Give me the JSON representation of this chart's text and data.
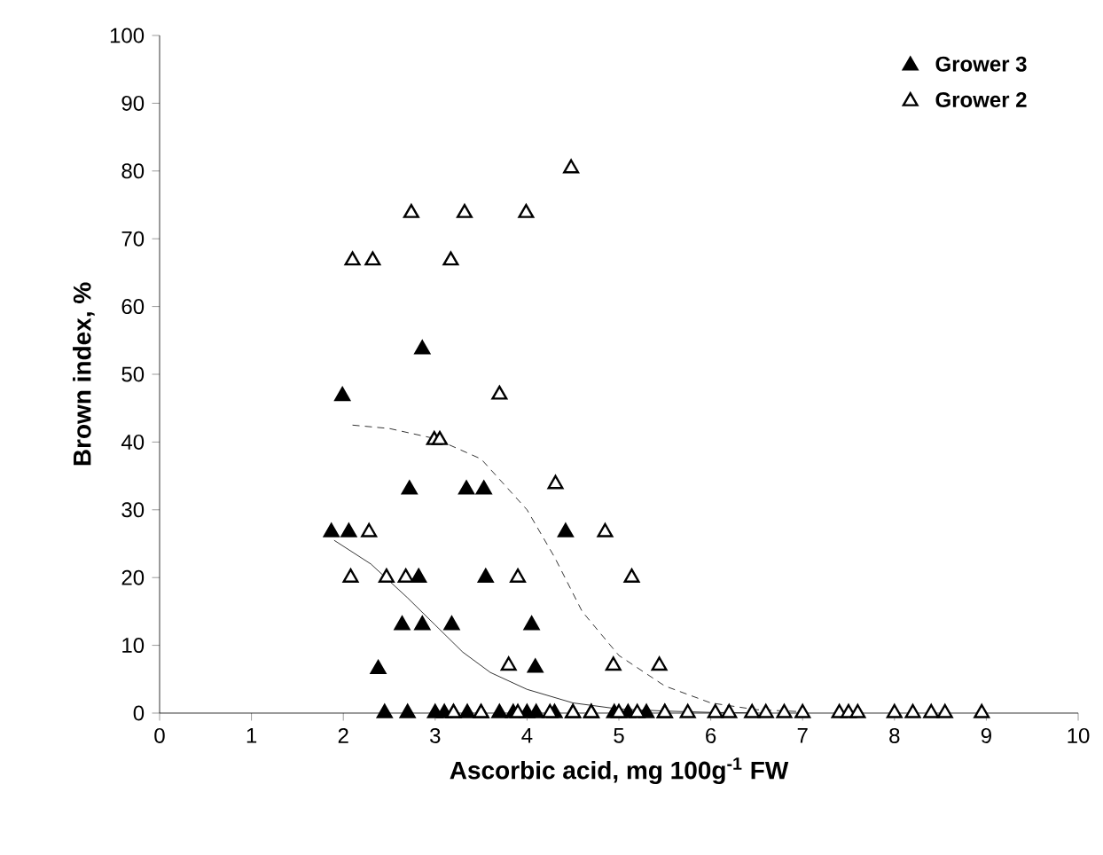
{
  "chart_data": {
    "type": "scatter",
    "xlabel": "Ascorbic acid, mg 100g$^{-1}$ FW",
    "ylabel": "Brown index, %",
    "xlim": [
      0,
      10
    ],
    "ylim": [
      0,
      100
    ],
    "xticks": [
      0,
      1,
      2,
      3,
      4,
      5,
      6,
      7,
      8,
      9,
      10
    ],
    "yticks": [
      0,
      10,
      20,
      30,
      40,
      50,
      60,
      70,
      80,
      90,
      100
    ],
    "grid": false,
    "legend": "top right",
    "marker": "triangle",
    "series": [
      {
        "name": "Grower 3",
        "color": "#000000",
        "x": [
          1.87,
          2.06,
          1.99,
          2.86,
          2.72,
          3.34,
          3.53,
          2.82,
          3.55,
          2.64,
          2.86,
          3.18,
          4.05,
          2.38,
          4.09,
          4.42,
          2.45,
          2.7,
          3.0,
          3.1,
          3.2,
          3.35,
          3.5,
          3.7,
          3.85,
          4.0,
          4.1,
          4.3,
          4.5,
          4.7,
          4.95,
          5.1,
          5.3,
          5.5
        ],
        "values": [
          26.7,
          26.7,
          46.8,
          53.7,
          33,
          33,
          33,
          20,
          20,
          13,
          13,
          13,
          13,
          6.5,
          6.7,
          26.7,
          0,
          0,
          0,
          0,
          0,
          0,
          0,
          0,
          0,
          0,
          0,
          0,
          0,
          0,
          0,
          0,
          0,
          0
        ]
      },
      {
        "name": "Grower 2",
        "color": "#000000",
        "x": [
          4.48,
          2.74,
          3.32,
          3.99,
          2.1,
          2.32,
          3.17,
          3.7,
          2.99,
          3.05,
          4.31,
          2.28,
          4.85,
          2.08,
          2.47,
          2.68,
          3.9,
          5.14,
          4.94,
          5.44,
          3.8,
          3.2,
          3.5,
          3.9,
          4.25,
          4.5,
          4.7,
          5.0,
          5.2,
          5.5,
          5.75,
          6.05,
          6.2,
          6.45,
          6.6,
          6.8,
          7.0,
          7.4,
          7.5,
          7.6,
          8.0,
          8.2,
          8.4,
          8.55,
          8.95
        ],
        "values": [
          80.4,
          73.8,
          73.8,
          73.8,
          66.8,
          66.8,
          66.8,
          47,
          40.3,
          40.3,
          33.8,
          26.7,
          26.7,
          20,
          20,
          20,
          20,
          20,
          7,
          7,
          7,
          0,
          0,
          0,
          0,
          0,
          0,
          0,
          0,
          0,
          0,
          0,
          0,
          0,
          0,
          0,
          0,
          0,
          0,
          0,
          0,
          0,
          0,
          0,
          0
        ]
      },
      {
        "type": "line",
        "color": "#000000",
        "line_style": "solid",
        "marker": "none",
        "x": [
          1.9,
          2.3,
          2.7,
          3.0,
          3.3,
          3.6,
          4.0,
          4.5,
          5.0,
          5.5,
          6.0,
          6.5
        ],
        "values": [
          25.5,
          22,
          17,
          13,
          9,
          6,
          3.5,
          1.5,
          0.6,
          0.3,
          0.1,
          0
        ]
      },
      {
        "type": "line",
        "color": "#000000",
        "line_style": "dashed",
        "marker": "none",
        "x": [
          2.1,
          2.5,
          3.0,
          3.5,
          4.0,
          4.3,
          4.6,
          5.0,
          5.5,
          6.0,
          6.5,
          7.0
        ],
        "values": [
          42.5,
          42,
          40.5,
          37.5,
          30,
          23,
          15,
          8.5,
          4,
          1.5,
          0.5,
          0.2
        ]
      }
    ]
  }
}
